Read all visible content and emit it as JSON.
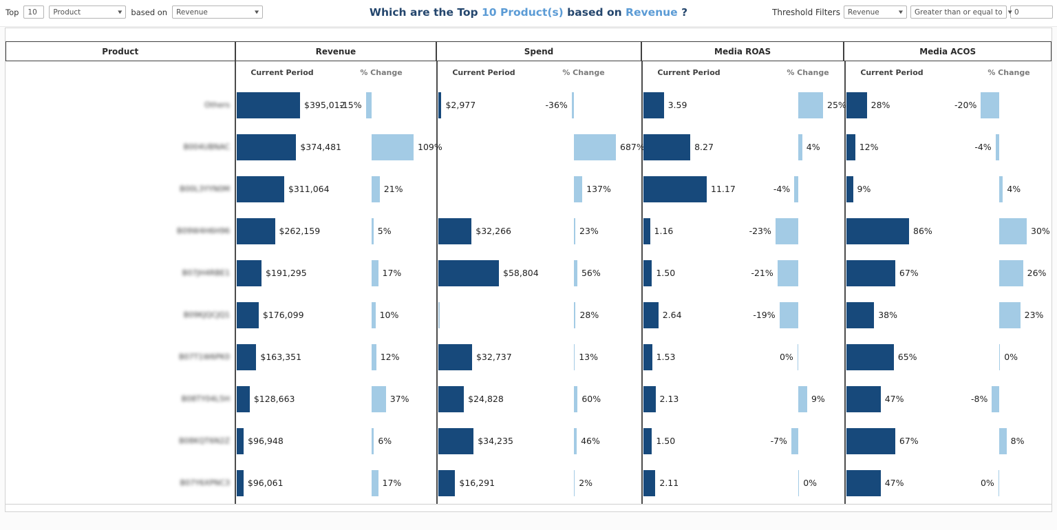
{
  "topbar": {
    "top_label": "Top",
    "top_value": "10",
    "dimension_value": "Product",
    "based_on_label": "based on",
    "measure_value": "Revenue",
    "threshold_label": "Threshold Filters",
    "threshold_field_value": "Revenue",
    "threshold_operator_value": "Greater than or equal to",
    "threshold_amount_value": "0"
  },
  "title": {
    "parts": [
      {
        "text": "Which are the Top ",
        "accent": false
      },
      {
        "text": "10 Product(s)",
        "accent": true
      },
      {
        "text": " based on ",
        "accent": false
      },
      {
        "text": "Revenue",
        "accent": true
      },
      {
        "text": " ?",
        "accent": false
      }
    ]
  },
  "table": {
    "product_header": "Product",
    "metric_headers": [
      "Revenue",
      "Spend",
      "Media ROAS",
      "Media ACOS"
    ],
    "sub_headers": [
      "Current Period",
      "% Change"
    ]
  },
  "colors": {
    "bar_dark": "#17497b",
    "bar_light": "#a3cbe5",
    "title_navy": "#24466d",
    "title_accent": "#5b9bd5"
  },
  "chart_data": {
    "type": "bar",
    "note": "Tableau-style top-N bullet table; each metric has Current Period bar and % Change bar",
    "product_labels_blurred": true,
    "metrics": [
      {
        "name": "Revenue",
        "value_axis": [
          60000,
          395012
        ],
        "pct_axis_max": 109
      },
      {
        "name": "Spend",
        "value_axis": [
          0,
          58804
        ],
        "pct_axis_max": 687
      },
      {
        "name": "Media ROAS",
        "value_axis": [
          0,
          11.17
        ],
        "pct_axis_max": 25
      },
      {
        "name": "Media ACOS",
        "value_axis": [
          0,
          86
        ],
        "pct_axis_max": 30
      }
    ],
    "rows": [
      {
        "product": "Others",
        "cells": [
          {
            "value": 395012,
            "label": "$395,012",
            "pct": -15,
            "pct_label": "-15%"
          },
          {
            "value": 2977,
            "label": "$2,977",
            "pct": -36,
            "pct_label": "-36%"
          },
          {
            "value": 3.59,
            "label": "3.59",
            "pct": 25,
            "pct_label": "25%"
          },
          {
            "value": 28,
            "label": "28%",
            "pct": -20,
            "pct_label": "-20%"
          }
        ]
      },
      {
        "product": "B004UBNAC",
        "cells": [
          {
            "value": 374481,
            "label": "$374,481",
            "pct": 109,
            "pct_label": "109%"
          },
          {
            "value": null,
            "label": "",
            "pct": 687,
            "pct_label": "687%"
          },
          {
            "value": 8.27,
            "label": "8.27",
            "pct": 4,
            "pct_label": "4%"
          },
          {
            "value": 12,
            "label": "12%",
            "pct": -4,
            "pct_label": "-4%"
          }
        ]
      },
      {
        "product": "B00L3YYN0M",
        "cells": [
          {
            "value": 311064,
            "label": "$311,064",
            "pct": 21,
            "pct_label": "21%"
          },
          {
            "value": null,
            "label": "",
            "pct": 137,
            "pct_label": "137%"
          },
          {
            "value": 11.17,
            "label": "11.17",
            "pct": -4,
            "pct_label": "-4%"
          },
          {
            "value": 9,
            "label": "9%",
            "pct": 4,
            "pct_label": "4%"
          }
        ]
      },
      {
        "product": "B09W4H6H96",
        "cells": [
          {
            "value": 262159,
            "label": "$262,159",
            "pct": 5,
            "pct_label": "5%"
          },
          {
            "value": 32266,
            "label": "$32,266",
            "pct": 23,
            "pct_label": "23%"
          },
          {
            "value": 1.16,
            "label": "1.16",
            "pct": -23,
            "pct_label": "-23%"
          },
          {
            "value": 86,
            "label": "86%",
            "pct": 30,
            "pct_label": "30%"
          }
        ]
      },
      {
        "product": "B07JH4RBE1",
        "cells": [
          {
            "value": 191295,
            "label": "$191,295",
            "pct": 17,
            "pct_label": "17%"
          },
          {
            "value": 58804,
            "label": "$58,804",
            "pct": 56,
            "pct_label": "56%"
          },
          {
            "value": 1.5,
            "label": "1.50",
            "pct": -21,
            "pct_label": "-21%"
          },
          {
            "value": 67,
            "label": "67%",
            "pct": 26,
            "pct_label": "26%"
          }
        ]
      },
      {
        "product": "B09KJQCJQ1",
        "cells": [
          {
            "value": 176099,
            "label": "$176,099",
            "pct": 10,
            "pct_label": "10%"
          },
          {
            "value": 1500,
            "label": "",
            "pct": 28,
            "pct_label": "28%",
            "estimated": true,
            "bar_style": "light"
          },
          {
            "value": 2.64,
            "label": "2.64",
            "pct": -19,
            "pct_label": "-19%"
          },
          {
            "value": 38,
            "label": "38%",
            "pct": 23,
            "pct_label": "23%"
          }
        ]
      },
      {
        "product": "B07T1W6PK0",
        "cells": [
          {
            "value": 163351,
            "label": "$163,351",
            "pct": 12,
            "pct_label": "12%"
          },
          {
            "value": 32737,
            "label": "$32,737",
            "pct": 13,
            "pct_label": "13%"
          },
          {
            "value": 1.53,
            "label": "1.53",
            "pct": 0,
            "pct_label": "0%",
            "pct_side": "left"
          },
          {
            "value": 65,
            "label": "65%",
            "pct": 0,
            "pct_label": "0%",
            "pct_side": "right"
          }
        ]
      },
      {
        "product": "B08TY04L5H",
        "cells": [
          {
            "value": 128663,
            "label": "$128,663",
            "pct": 37,
            "pct_label": "37%"
          },
          {
            "value": 24828,
            "label": "$24,828",
            "pct": 60,
            "pct_label": "60%"
          },
          {
            "value": 2.13,
            "label": "2.13",
            "pct": 9,
            "pct_label": "9%"
          },
          {
            "value": 47,
            "label": "47%",
            "pct": -8,
            "pct_label": "-8%"
          }
        ]
      },
      {
        "product": "B08KQT6N2Z",
        "cells": [
          {
            "value": 96948,
            "label": "$96,948",
            "pct": 6,
            "pct_label": "6%"
          },
          {
            "value": 34235,
            "label": "$34,235",
            "pct": 46,
            "pct_label": "46%"
          },
          {
            "value": 1.5,
            "label": "1.50",
            "pct": -7,
            "pct_label": "-7%"
          },
          {
            "value": 67,
            "label": "67%",
            "pct": 8,
            "pct_label": "8%"
          }
        ]
      },
      {
        "product": "B07Y6XPNC3",
        "cells": [
          {
            "value": 96061,
            "label": "$96,061",
            "pct": 17,
            "pct_label": "17%"
          },
          {
            "value": 16291,
            "label": "$16,291",
            "pct": 2,
            "pct_label": "2%"
          },
          {
            "value": 2.11,
            "label": "2.11",
            "pct": 0,
            "pct_label": "0%",
            "pct_side": "right"
          },
          {
            "value": 47,
            "label": "47%",
            "pct": 0,
            "pct_label": "0%",
            "pct_side": "left"
          }
        ]
      }
    ]
  }
}
